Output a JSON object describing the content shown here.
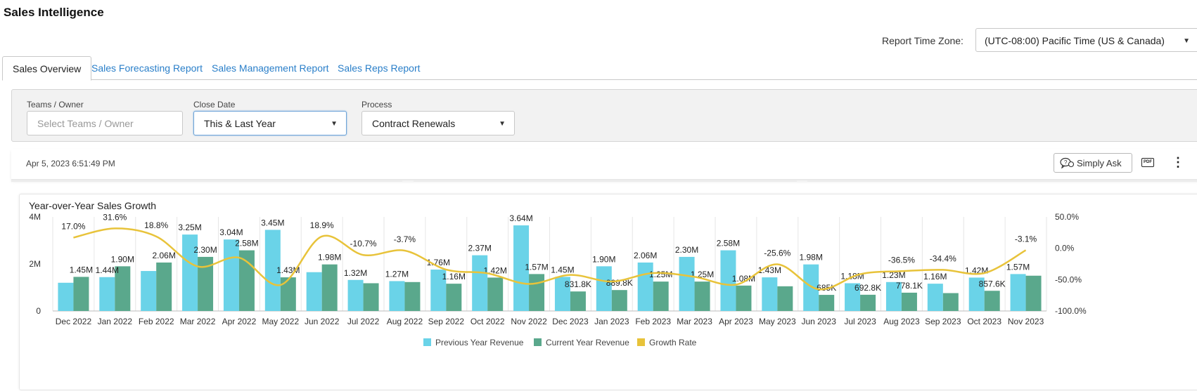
{
  "app": {
    "title": "Sales Intelligence"
  },
  "timezone": {
    "label": "Report Time Zone:",
    "value": "(UTC-08:00) Pacific Time (US & Canada)"
  },
  "tabs": [
    {
      "label": "Sales Overview",
      "active": true
    },
    {
      "label": "Sales Forecasting Report",
      "active": false
    },
    {
      "label": "Sales Management Report",
      "active": false
    },
    {
      "label": "Sales Reps Report",
      "active": false
    }
  ],
  "filters": {
    "teams": {
      "label": "Teams / Owner",
      "placeholder": "Select Teams / Owner",
      "value": ""
    },
    "close_date": {
      "label": "Close Date",
      "value": "This & Last Year"
    },
    "process": {
      "label": "Process",
      "value": "Contract Renewals"
    }
  },
  "toolbar": {
    "timestamp": "Apr 5, 2023 6:51:49 PM",
    "ask_label": "Simply Ask",
    "pdf_icon": "pdf-icon",
    "more_icon": "more-vertical-icon",
    "ask_icon": "chat-question-icon"
  },
  "colors": {
    "previous": "#6ad3e8",
    "current": "#5aa88c",
    "growth": "#e8c33a",
    "tab_link": "#2a7fc9"
  },
  "chart_data": {
    "type": "bar",
    "title": "Year-over-Year Sales Growth",
    "categories": [
      "Dec 2022",
      "Jan 2022",
      "Feb 2022",
      "Mar 2022",
      "Apr 2022",
      "May 2022",
      "Jun 2022",
      "Jul 2022",
      "Aug 2022",
      "Sep 2022",
      "Oct 2022",
      "Nov 2022",
      "Dec 2023",
      "Jan 2023",
      "Feb 2023",
      "Mar 2023",
      "Apr 2023",
      "May 2023",
      "Jun 2023",
      "Jul 2023",
      "Aug 2023",
      "Sep 2023",
      "Oct 2023",
      "Nov 2023"
    ],
    "y_left": {
      "ticks": [
        "4M",
        "2M",
        "0"
      ],
      "ylim": [
        0,
        4
      ]
    },
    "y_right": {
      "ticks": [
        "50.0%",
        "0.0%",
        "-50.0%",
        "-100.0%"
      ],
      "ylim": [
        -100,
        50
      ]
    },
    "series": [
      {
        "name": "Previous Year Revenue",
        "type": "bar",
        "values": [
          1.2,
          1.44,
          1.7,
          3.25,
          3.04,
          3.45,
          1.65,
          1.32,
          1.27,
          1.76,
          2.37,
          3.64,
          1.45,
          1.9,
          2.06,
          2.3,
          2.58,
          1.43,
          1.98,
          1.18,
          1.23,
          1.16,
          1.42,
          1.57
        ],
        "labels": [
          "",
          "1.44M",
          "",
          "3.25M",
          "3.04M",
          "3.45M",
          "",
          "1.32M",
          "1.27M",
          "1.76M",
          "2.37M",
          "3.64M",
          "1.45M",
          "1.90M",
          "2.06M",
          "2.30M",
          "2.58M",
          "1.43M",
          "1.98M",
          "1.18M",
          "1.23M",
          "1.16M",
          "1.42M",
          "1.57M"
        ]
      },
      {
        "name": "Current Year Revenue",
        "type": "bar",
        "values": [
          1.45,
          1.9,
          2.06,
          2.3,
          2.58,
          1.43,
          1.98,
          1.18,
          1.23,
          1.16,
          1.42,
          1.57,
          0.83,
          0.89,
          1.25,
          1.25,
          1.08,
          1.05,
          0.685,
          0.69,
          0.778,
          0.76,
          0.858,
          1.5
        ],
        "labels": [
          "1.45M",
          "1.90M",
          "2.06M",
          "2.30M",
          "2.58M",
          "1.43M",
          "1.98M",
          "",
          "",
          "1.16M",
          "1.42M",
          "1.57M",
          "831.8K",
          "889.8K",
          "1.25M",
          "1.25M",
          "1.08M",
          "",
          "685K",
          "692.8K",
          "778.1K",
          "",
          "857.6K",
          ""
        ]
      },
      {
        "name": "Growth Rate",
        "type": "line",
        "values": [
          17.0,
          31.6,
          18.8,
          -29,
          -15,
          -58.5,
          18.9,
          -10.7,
          -3.7,
          -34,
          -40,
          -56.9,
          -42.5,
          -53,
          -39.5,
          -45.6,
          -58,
          -25.6,
          -65.4,
          -41.3,
          -36.5,
          -34.4,
          -39.6,
          -3.1
        ],
        "labels": [
          "17.0%",
          "31.6%",
          "18.8%",
          "",
          "",
          "",
          "18.9%",
          "-10.7%",
          "-3.7%",
          "",
          "",
          "",
          "",
          "",
          "",
          "",
          "",
          "-25.6%",
          "",
          "",
          "-36.5%",
          "-34.4%",
          "",
          "-3.1%"
        ]
      }
    ],
    "legend": {
      "position": "bottom"
    }
  }
}
